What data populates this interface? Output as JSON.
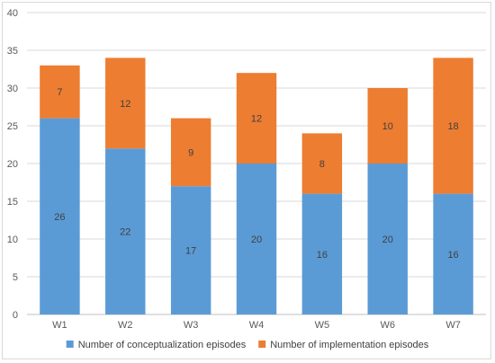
{
  "chart_data": {
    "type": "bar",
    "stacked": true,
    "categories": [
      "W1",
      "W2",
      "W3",
      "W4",
      "W5",
      "W6",
      "W7"
    ],
    "series": [
      {
        "name": "Number of conceptualization episodes",
        "values": [
          26,
          22,
          17,
          20,
          16,
          20,
          16
        ],
        "color": "#5B9BD5"
      },
      {
        "name": "Number of implementation episodes",
        "values": [
          7,
          12,
          9,
          12,
          8,
          10,
          18
        ],
        "color": "#ED7D31"
      }
    ],
    "ylim": [
      0,
      40
    ],
    "yticks": [
      0,
      5,
      10,
      15,
      20,
      25,
      30,
      35,
      40
    ],
    "grid": true,
    "legend": "bottom",
    "data_labels": true
  }
}
